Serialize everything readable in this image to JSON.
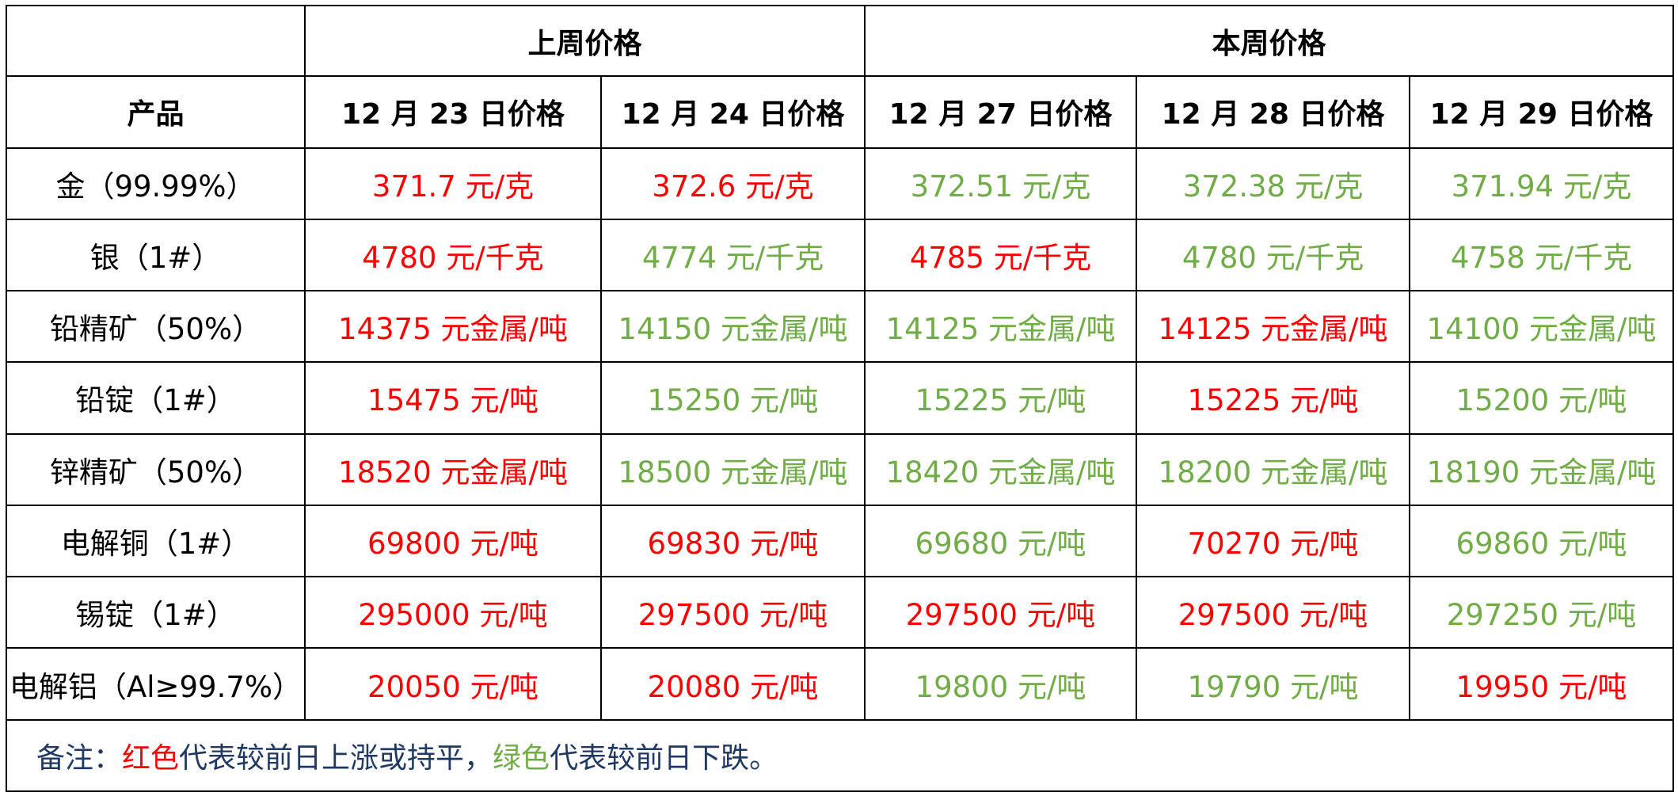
{
  "header": {
    "last_week": "上周价格",
    "this_week": "本周价格",
    "product": "产品",
    "dates": [
      "12 月 23 日价格",
      "12 月 24 日价格",
      "12 月 27 日价格",
      "12 月 28 日价格",
      "12 月 29 日价格"
    ]
  },
  "colors": {
    "up": "#ff0000",
    "down": "#70ad47",
    "note": "#1f3864"
  },
  "rows": [
    {
      "product": "金（99.99%）",
      "prices": [
        {
          "text": "371.7 元/克",
          "trend": "up"
        },
        {
          "text": "372.6 元/克",
          "trend": "up"
        },
        {
          "text": "372.51 元/克",
          "trend": "down"
        },
        {
          "text": "372.38 元/克",
          "trend": "down"
        },
        {
          "text": "371.94 元/克",
          "trend": "down"
        }
      ]
    },
    {
      "product": "银（1#）",
      "prices": [
        {
          "text": "4780 元/千克",
          "trend": "up"
        },
        {
          "text": "4774 元/千克",
          "trend": "down"
        },
        {
          "text": "4785 元/千克",
          "trend": "up"
        },
        {
          "text": "4780 元/千克",
          "trend": "down"
        },
        {
          "text": "4758 元/千克",
          "trend": "down"
        }
      ]
    },
    {
      "product": "铅精矿（50%）",
      "prices": [
        {
          "text": "14375 元金属/吨",
          "trend": "up"
        },
        {
          "text": "14150 元金属/吨",
          "trend": "down"
        },
        {
          "text": "14125 元金属/吨",
          "trend": "down"
        },
        {
          "text": "14125 元金属/吨",
          "trend": "up"
        },
        {
          "text": "14100 元金属/吨",
          "trend": "down"
        }
      ]
    },
    {
      "product": "铅锭（1#）",
      "prices": [
        {
          "text": "15475 元/吨",
          "trend": "up"
        },
        {
          "text": "15250 元/吨",
          "trend": "down"
        },
        {
          "text": "15225 元/吨",
          "trend": "down"
        },
        {
          "text": "15225 元/吨",
          "trend": "up"
        },
        {
          "text": "15200 元/吨",
          "trend": "down"
        }
      ]
    },
    {
      "product": "锌精矿（50%）",
      "prices": [
        {
          "text": "18520 元金属/吨",
          "trend": "up"
        },
        {
          "text": "18500 元金属/吨",
          "trend": "down"
        },
        {
          "text": "18420 元金属/吨",
          "trend": "down"
        },
        {
          "text": "18200 元金属/吨",
          "trend": "down"
        },
        {
          "text": "18190 元金属/吨",
          "trend": "down"
        }
      ]
    },
    {
      "product": "电解铜（1#）",
      "prices": [
        {
          "text": "69800 元/吨",
          "trend": "up"
        },
        {
          "text": "69830 元/吨",
          "trend": "up"
        },
        {
          "text": "69680 元/吨",
          "trend": "down"
        },
        {
          "text": "70270 元/吨",
          "trend": "up"
        },
        {
          "text": "69860 元/吨",
          "trend": "down"
        }
      ]
    },
    {
      "product": "锡锭（1#）",
      "prices": [
        {
          "text": "295000 元/吨",
          "trend": "up"
        },
        {
          "text": "297500 元/吨",
          "trend": "up"
        },
        {
          "text": "297500 元/吨",
          "trend": "up"
        },
        {
          "text": "297500 元/吨",
          "trend": "up"
        },
        {
          "text": "297250 元/吨",
          "trend": "down"
        }
      ]
    },
    {
      "product": "电解铝（Al≥99.7%）",
      "prices": [
        {
          "text": "20050 元/吨",
          "trend": "up"
        },
        {
          "text": "20080 元/吨",
          "trend": "up"
        },
        {
          "text": "19800 元/吨",
          "trend": "down"
        },
        {
          "text": "19790 元/吨",
          "trend": "down"
        },
        {
          "text": "19950 元/吨",
          "trend": "up"
        }
      ]
    }
  ],
  "note": {
    "prefix": "备注：",
    "red_word": "红色",
    "middle": "代表较前日上涨或持平，",
    "green_word": "绿色",
    "suffix": "代表较前日下跌。"
  }
}
